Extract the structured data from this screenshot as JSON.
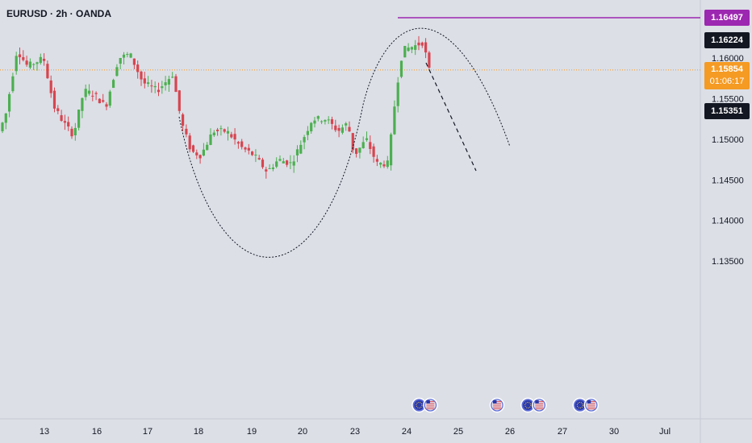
{
  "header": {
    "symbol_label": "EURUSD · 2h · OANDA"
  },
  "colors": {
    "background": "#dcdfe6",
    "up": "#4caf50",
    "down": "#d64550",
    "target_line": "#9c27b0",
    "current_price_line": "#f59a23",
    "axis_text": "#131722",
    "curve": "#131722"
  },
  "chart_data": {
    "type": "candlestick",
    "title": "",
    "y_ticks": [
      "1.16000",
      "1.15500",
      "1.15000",
      "1.14500",
      "1.14000",
      "1.13500"
    ],
    "y_tick_values": [
      1.16,
      1.155,
      1.15,
      1.145,
      1.14,
      1.135
    ],
    "ylim": [
      1.1345,
      1.168
    ],
    "x_ticks": [
      "13",
      "16",
      "17",
      "18",
      "19",
      "20",
      "23",
      "24",
      "25",
      "26",
      "27",
      "30",
      "Jul"
    ],
    "price_labels": {
      "target": {
        "text": "1.16497",
        "value": 1.16497
      },
      "high": {
        "text": "1.16224",
        "value": 1.16224
      },
      "current": {
        "text": "1.15854",
        "value": 1.15854,
        "countdown": "01:06:17"
      },
      "low_marker": {
        "text": "1.15351",
        "value": 1.15351
      }
    },
    "events": [
      {
        "date_index": 7.35,
        "icons": [
          "eu-flag",
          "us-flag"
        ]
      },
      {
        "date_index": 8.75,
        "icons": [
          "us-flag"
        ]
      },
      {
        "date_index": 9.45,
        "icons": [
          "eu-flag",
          "us-flag"
        ]
      },
      {
        "date_index": 10.45,
        "icons": [
          "eu-flag",
          "us-flag"
        ]
      }
    ],
    "projection": {
      "pattern": "rounded-bottom arc continuing to rounded top",
      "arc_bottom": 1.1447,
      "arc_top": 1.16497,
      "dashed_projection_end": 1.1535
    }
  }
}
